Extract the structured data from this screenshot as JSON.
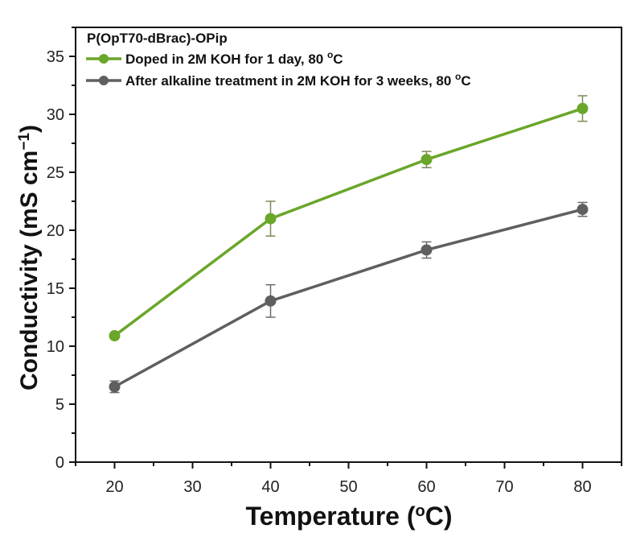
{
  "chart_data": {
    "type": "line",
    "title": "",
    "legend_title": "P(OpT70-dBrac)-OPip",
    "legend_position": "top-left",
    "xlabel": "Temperature (°C)",
    "xlabel_parts": {
      "pre": "Temperature (",
      "sup": "o",
      "post": "C)"
    },
    "ylabel": "Conductivity (mS cm⁻¹)",
    "ylabel_parts": {
      "pre": "Conductivity (mS cm",
      "sup": "−1",
      "post": ")"
    },
    "xlim": [
      15,
      85
    ],
    "ylim": [
      0,
      37.5
    ],
    "xticks": [
      20,
      30,
      40,
      50,
      60,
      70,
      80
    ],
    "xminor": [
      15,
      25,
      35,
      45,
      55,
      65,
      75,
      85
    ],
    "yticks": [
      0,
      5,
      10,
      15,
      20,
      25,
      30,
      35
    ],
    "yminor": [
      2.5,
      7.5,
      12.5,
      17.5,
      22.5,
      27.5,
      32.5,
      37.5
    ],
    "grid": false,
    "x": [
      20,
      40,
      60,
      80
    ],
    "series": [
      {
        "name": "Doped in 2M KOH for 1 day, 80 °C",
        "label_pre": "Doped in 2M KOH for 1 day, 80 ",
        "label_sup": "o",
        "label_post": "C",
        "color": "#6aa62a",
        "values": [
          10.9,
          21.0,
          26.1,
          30.5
        ],
        "errors": [
          0.2,
          1.5,
          0.7,
          1.1
        ]
      },
      {
        "name": "After alkaline treatment in 2M KOH for 3 weeks, 80 °C",
        "label_pre": "After alkaline treatment in 2M KOH for 3 weeks, 80 ",
        "label_sup": "o",
        "label_post": "C",
        "color": "#5f5f5f",
        "values": [
          6.5,
          13.9,
          18.3,
          21.8
        ],
        "errors": [
          0.5,
          1.4,
          0.7,
          0.6
        ]
      }
    ]
  }
}
